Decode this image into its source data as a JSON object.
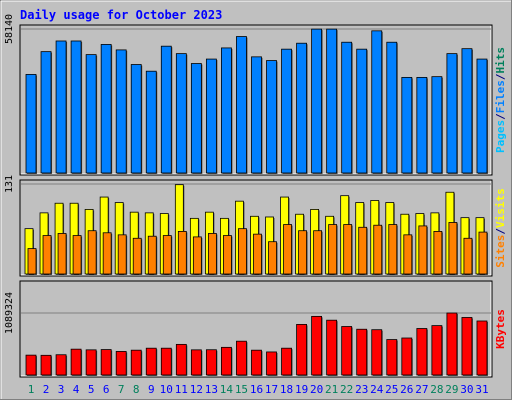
{
  "chart_data": [
    {
      "type": "bar",
      "title": "Daily usage for October 2023",
      "panel": "pages-files-hits",
      "categories": [
        "1",
        "2",
        "3",
        "4",
        "5",
        "6",
        "7",
        "8",
        "9",
        "10",
        "11",
        "12",
        "13",
        "14",
        "15",
        "16",
        "17",
        "18",
        "19",
        "20",
        "21",
        "22",
        "23",
        "24",
        "25",
        "26",
        "27",
        "28",
        "29",
        "30",
        "31"
      ],
      "weekend_days": [
        "1",
        "7",
        "8",
        "14",
        "15",
        "21",
        "22",
        "28",
        "29"
      ],
      "ymax_label": "58140",
      "ylim": [
        0,
        58140
      ],
      "legend": [
        {
          "key": "pages",
          "label": "Pages"
        },
        {
          "key": "sep1",
          "label": "/"
        },
        {
          "key": "files",
          "label": "Files"
        },
        {
          "key": "sep2",
          "label": "/"
        },
        {
          "key": "hits",
          "label": "Hits"
        }
      ],
      "series": [
        {
          "name": "Hits",
          "values": [
            0,
            0,
            0,
            0,
            0,
            0,
            0,
            0,
            0,
            0,
            0,
            0,
            0,
            0,
            0,
            0,
            0,
            0,
            0,
            0,
            0,
            0,
            0,
            0,
            0,
            0,
            0,
            0,
            0,
            0,
            0
          ]
        },
        {
          "name": "Files",
          "values": [
            39800,
            49000,
            53300,
            53300,
            47800,
            51900,
            49700,
            43800,
            41100,
            51200,
            48200,
            44200,
            46000,
            50500,
            55100,
            46900,
            45400,
            50000,
            52400,
            58100,
            58100,
            52800,
            50000,
            57400,
            52800,
            38600,
            38600,
            38900,
            48200,
            50200,
            46000
          ]
        },
        {
          "name": "Pages",
          "values": [
            0,
            0,
            0,
            0,
            0,
            0,
            0,
            0,
            0,
            0,
            0,
            0,
            0,
            0,
            0,
            0,
            0,
            0,
            0,
            0,
            0,
            0,
            0,
            0,
            0,
            0,
            0,
            0,
            0,
            0,
            0
          ]
        }
      ]
    },
    {
      "type": "bar",
      "panel": "sites-visits",
      "categories": [
        "1",
        "2",
        "3",
        "4",
        "5",
        "6",
        "7",
        "8",
        "9",
        "10",
        "11",
        "12",
        "13",
        "14",
        "15",
        "16",
        "17",
        "18",
        "19",
        "20",
        "21",
        "22",
        "23",
        "24",
        "25",
        "26",
        "27",
        "28",
        "29",
        "30",
        "31"
      ],
      "ymax_label": "131",
      "ylim": [
        0,
        131
      ],
      "legend": [
        {
          "key": "sites",
          "label": "Sites"
        },
        {
          "key": "sep",
          "label": "/"
        },
        {
          "key": "visits",
          "label": "Visits"
        }
      ],
      "series": [
        {
          "name": "Visits",
          "values": [
            66,
            89,
            103,
            103,
            94,
            112,
            104,
            90,
            89,
            88,
            130,
            81,
            90,
            81,
            106,
            84,
            83,
            112,
            87,
            94,
            84,
            114,
            104,
            107,
            104,
            87,
            88,
            89,
            119,
            82,
            82
          ]
        },
        {
          "name": "Sites",
          "values": [
            37,
            56,
            59,
            56,
            63,
            60,
            57,
            52,
            55,
            56,
            62,
            54,
            59,
            56,
            66,
            58,
            47,
            72,
            63,
            63,
            72,
            72,
            68,
            71,
            72,
            57,
            70,
            62,
            75,
            52,
            61
          ]
        }
      ]
    },
    {
      "type": "bar",
      "panel": "kbytes",
      "categories": [
        "1",
        "2",
        "3",
        "4",
        "5",
        "6",
        "7",
        "8",
        "9",
        "10",
        "11",
        "12",
        "13",
        "14",
        "15",
        "16",
        "17",
        "18",
        "19",
        "20",
        "21",
        "22",
        "23",
        "24",
        "25",
        "26",
        "27",
        "28",
        "29",
        "30",
        "31"
      ],
      "ymax_label": "1089324",
      "ylim": [
        0,
        1089324
      ],
      "legend": [
        {
          "key": "kbytes",
          "label": "KBytes"
        }
      ],
      "series": [
        {
          "name": "KBytes",
          "values": [
            349000,
            346000,
            356000,
            454000,
            442000,
            447000,
            414000,
            436000,
            471000,
            471000,
            538000,
            442000,
            444000,
            486000,
            594000,
            436000,
            405000,
            471000,
            889000,
            1030000,
            963000,
            852000,
            804000,
            796000,
            623000,
            650000,
            817000,
            868000,
            1089000,
            1011000,
            949000
          ]
        }
      ]
    }
  ],
  "colors": {
    "frame_bg": "#c0c0c0",
    "panel_bg": "#c0c0c0",
    "title": "#0000ff",
    "hits": "#00805c",
    "files": "#0080ff",
    "files_top": "#00c0ff",
    "pages": "#00c0ff",
    "visits": "#ffff00",
    "sites": "#ff8000",
    "kbytes": "#ff0000",
    "day_weekday": "#0000ff",
    "day_weekend": "#00805c",
    "separator": "#000080"
  }
}
